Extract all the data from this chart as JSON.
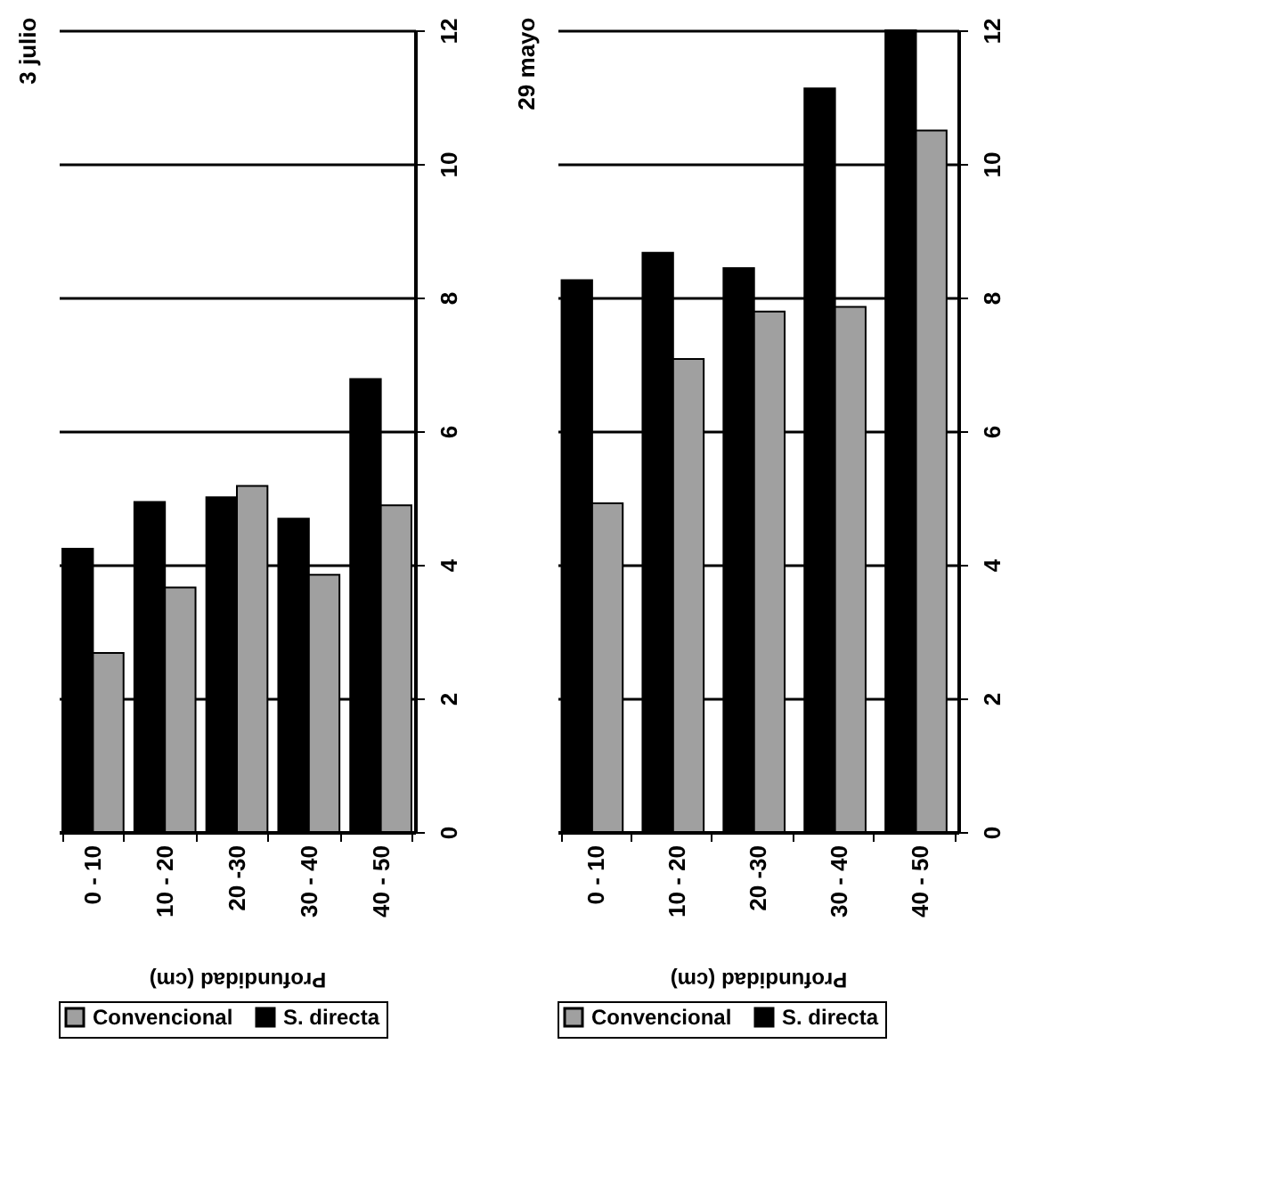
{
  "chart_data": [
    {
      "type": "bar",
      "title": "3 julio",
      "xlabel": "Profundidad (cm)",
      "categories": [
        "0 - 10",
        "10 - 20",
        "20 -30",
        "30 - 40",
        "40 - 50"
      ],
      "series": [
        {
          "name": "S. directa",
          "color": "#000000",
          "values": [
            4.24,
            4.94,
            5.01,
            4.69,
            6.78
          ]
        },
        {
          "name": "Convencional",
          "color": "#a0a0a0",
          "values": [
            2.68,
            3.66,
            5.18,
            3.85,
            4.89
          ]
        }
      ],
      "ylim": [
        0,
        12
      ],
      "yticks": [
        0,
        2,
        4,
        6,
        8,
        10,
        12
      ],
      "grid": "y",
      "legend": "bottom"
    },
    {
      "type": "bar",
      "title": "29 mayo",
      "xlabel": "Profundidad (cm)",
      "categories": [
        "0 - 10",
        "10 - 20",
        "20 -30",
        "30 - 40",
        "40 - 50"
      ],
      "series": [
        {
          "name": "S. directa",
          "color": "#000000",
          "values": [
            8.26,
            8.67,
            8.44,
            11.13,
            12.0
          ]
        },
        {
          "name": "Convencional",
          "color": "#a0a0a0",
          "values": [
            4.92,
            7.08,
            7.79,
            7.86,
            10.5
          ]
        }
      ],
      "ylim": [
        0,
        12
      ],
      "yticks": [
        0,
        2,
        4,
        6,
        8,
        10,
        12
      ],
      "grid": "y",
      "legend": "bottom"
    }
  ]
}
